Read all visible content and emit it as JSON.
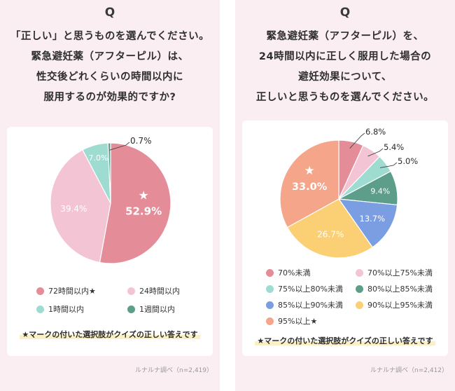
{
  "panels": [
    {
      "q_mark": "Q",
      "question_lines": [
        "「正しい」と思うものを選んでください。",
        "緊急避妊薬（アフターピル）は、",
        "性交後どれくらいの時間以内に",
        "服用するのが効果的ですか?"
      ],
      "legend": [
        {
          "label": "72時間以内★",
          "color": "#e58c99"
        },
        {
          "label": "24時間以内",
          "color": "#f3c4d4"
        },
        {
          "label": "1時間以内",
          "color": "#9edcd2"
        },
        {
          "label": "1週間以内",
          "color": "#5d9e8b"
        }
      ],
      "note": "★マークの付いた選択肢がクイズの正しい答えです",
      "source": "ルナルナ調べ（n=2,419）"
    },
    {
      "q_mark": "Q",
      "question_lines": [
        "緊急避妊薬（アフターピル）を、",
        "24時間以内に正しく服用した場合の",
        "避妊効果について、",
        "正しいと思うものを選んでください。"
      ],
      "legend": [
        {
          "label": "70%未満",
          "color": "#e58c99"
        },
        {
          "label": "70%以上75%未満",
          "color": "#f3c4d4"
        },
        {
          "label": "75%以上80%未満",
          "color": "#9edcd2"
        },
        {
          "label": "80%以上85%未満",
          "color": "#5d9e8b"
        },
        {
          "label": "85%以上90%未満",
          "color": "#7b9ee2"
        },
        {
          "label": "90%以上95%未満",
          "color": "#fbcf74"
        },
        {
          "label": "95%以上★",
          "color": "#f5a58a"
        }
      ],
      "note": "★マークの付いた選択肢がクイズの正しい答えです",
      "source": "ルナルナ調べ（n=2,412）"
    }
  ],
  "chart_data": [
    {
      "type": "pie",
      "title": "",
      "correct_marker": "★",
      "slices": [
        {
          "label": "72時間以内★",
          "value": 52.9,
          "value_label": "52.9%",
          "color": "#e58c99",
          "correct": true
        },
        {
          "label": "24時間以内",
          "value": 39.4,
          "value_label": "39.4%",
          "color": "#f3c4d4",
          "correct": false
        },
        {
          "label": "1時間以内",
          "value": 7.0,
          "value_label": "7.0%",
          "color": "#9edcd2",
          "correct": false
        },
        {
          "label": "1週間以内",
          "value": 0.7,
          "value_label": "0.7%",
          "color": "#5d9e8b",
          "correct": false
        }
      ]
    },
    {
      "type": "pie",
      "title": "",
      "correct_marker": "★",
      "slices": [
        {
          "label": "70%未満",
          "value": 6.8,
          "value_label": "6.8%",
          "color": "#e58c99",
          "correct": false
        },
        {
          "label": "70%以上75%未満",
          "value": 5.4,
          "value_label": "5.4%",
          "color": "#f3c4d4",
          "correct": false
        },
        {
          "label": "75%以上80%未満",
          "value": 5.0,
          "value_label": "5.0%",
          "color": "#9edcd2",
          "correct": false
        },
        {
          "label": "80%以上85%未満",
          "value": 9.4,
          "value_label": "9.4%",
          "color": "#5d9e8b",
          "correct": false
        },
        {
          "label": "85%以上90%未満",
          "value": 13.7,
          "value_label": "13.7%",
          "color": "#7b9ee2",
          "correct": false
        },
        {
          "label": "90%以上95%未満",
          "value": 26.7,
          "value_label": "26.7%",
          "color": "#fbcf74",
          "correct": false
        },
        {
          "label": "95%以上★",
          "value": 33.0,
          "value_label": "33.0%",
          "color": "#f5a58a",
          "correct": true
        }
      ]
    }
  ]
}
